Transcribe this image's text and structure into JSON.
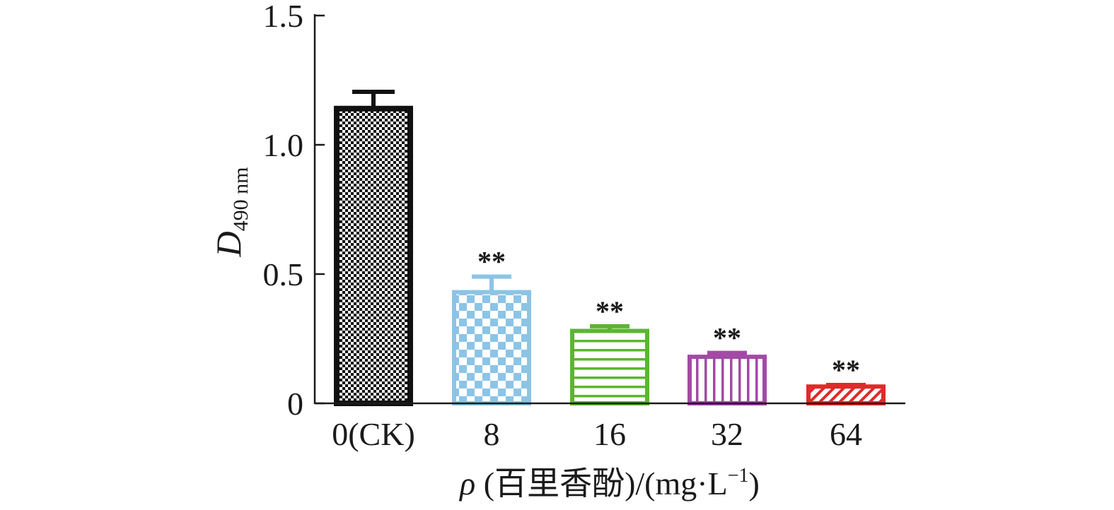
{
  "chart_data": {
    "type": "bar",
    "categories": [
      "0(CK)",
      "8",
      "16",
      "32",
      "64"
    ],
    "values": [
      1.14,
      0.43,
      0.28,
      0.18,
      0.065
    ],
    "errors": [
      0.065,
      0.06,
      0.018,
      0.015,
      0.006
    ],
    "significance": [
      "",
      "**",
      "**",
      "**",
      "**"
    ],
    "colors": [
      "#111111",
      "#8cc4e6",
      "#5cb531",
      "#a24aa6",
      "#e02a2a"
    ],
    "patterns": [
      "fine-checker",
      "checker",
      "horizontal-stripes",
      "vertical-stripes",
      "diagonal-stripes"
    ],
    "ylim": [
      0,
      1.5
    ],
    "yticks": [
      0,
      0.5,
      1.0,
      1.5
    ],
    "ytick_labels": [
      "0",
      "0.5",
      "1.0",
      "1.5"
    ],
    "ylabel": {
      "main": "D",
      "subscript": "490 nm"
    },
    "xlabel": {
      "symbol": "ρ",
      "text": " (百里香酚)/(mg·L",
      "superscript": "−1",
      "tail": ")"
    },
    "grid": false,
    "legend": "none"
  }
}
